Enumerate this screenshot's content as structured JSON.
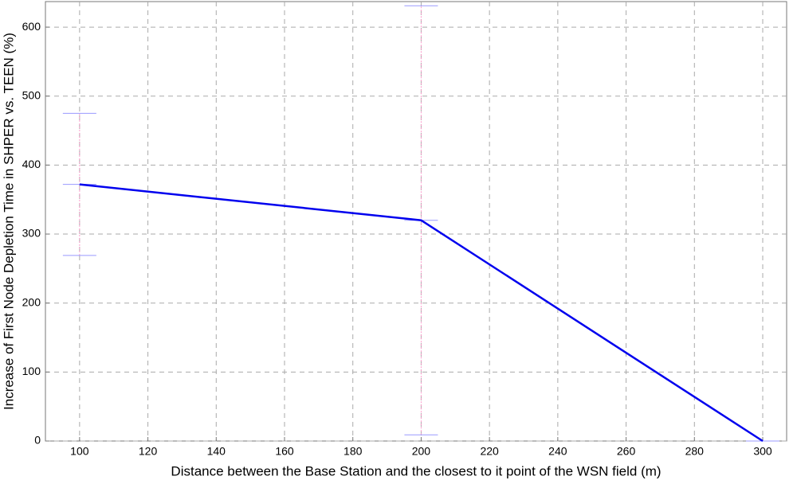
{
  "chart_data": {
    "type": "line",
    "x_label": "Distance between the Base Station and the closest to it point of the WSN field (m)",
    "y_label": "Increase of First Node Depletion Time in SHPER vs. TEEN (%)",
    "x": [
      100,
      200,
      300
    ],
    "series": [
      {
        "color": "#0000ee",
        "values": [
          372,
          320,
          0
        ],
        "errors": [
          103,
          311,
          0
        ],
        "error_color": "#ff99cc",
        "cap_color": "#9999ff"
      }
    ],
    "xlim": [
      90,
      307
    ],
    "ylim": [
      0,
      637
    ],
    "xticks": [
      100,
      120,
      140,
      160,
      180,
      200,
      220,
      240,
      260,
      280,
      300
    ],
    "yticks": [
      0,
      100,
      200,
      300,
      400,
      500,
      600
    ],
    "grid": true
  }
}
